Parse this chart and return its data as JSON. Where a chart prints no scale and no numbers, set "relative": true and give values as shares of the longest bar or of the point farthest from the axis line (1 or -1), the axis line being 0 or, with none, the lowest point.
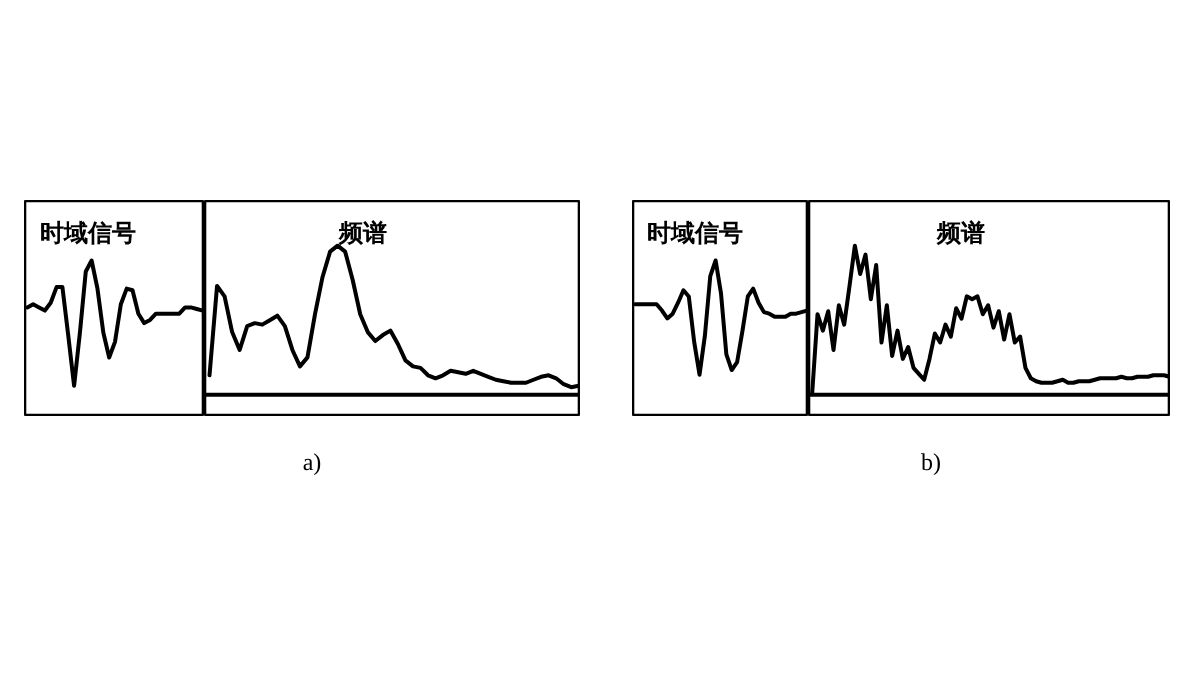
{
  "chart_data": [
    {
      "type": "line",
      "title": "时域信号",
      "relative": true,
      "color": "#000000",
      "categories": [
        null,
        null,
        null,
        null,
        null,
        null,
        null,
        null,
        null,
        null,
        null,
        null,
        null,
        null,
        null,
        null,
        null,
        null,
        null,
        null,
        null,
        null,
        null,
        null,
        null,
        null,
        null,
        null,
        null,
        null,
        null
      ],
      "values": [
        0.7,
        0.72,
        0.7,
        0.68,
        0.73,
        0.83,
        0.83,
        0.52,
        0.2,
        0.54,
        0.93,
        1,
        0.82,
        0.54,
        0.38,
        0.48,
        0.72,
        0.82,
        0.81,
        0.66,
        0.6,
        0.62,
        0.66,
        0.66,
        0.66,
        0.66,
        0.66,
        0.7,
        0.7,
        0.69,
        0.68
      ]
    },
    {
      "type": "line",
      "title": "频谱",
      "relative": true,
      "color": "#000000",
      "annotations": [
        "a)"
      ],
      "categories": [
        null,
        null,
        null,
        null,
        null,
        null,
        null,
        null,
        null,
        null,
        null,
        null,
        null,
        null,
        null,
        null,
        null,
        null,
        null,
        null,
        null,
        null,
        null,
        null,
        null,
        null,
        null,
        null,
        null,
        null,
        null,
        null,
        null,
        null,
        null,
        null,
        null,
        null,
        null,
        null,
        null,
        null,
        null,
        null,
        null,
        null,
        null,
        null,
        null,
        null
      ],
      "values": [
        0.13,
        0.73,
        0.66,
        0.42,
        0.3,
        0.46,
        0.48,
        0.47,
        0.5,
        0.53,
        0.46,
        0.3,
        0.19,
        0.25,
        0.54,
        0.79,
        0.96,
        1,
        0.96,
        0.77,
        0.54,
        0.42,
        0.36,
        0.4,
        0.43,
        0.34,
        0.23,
        0.19,
        0.18,
        0.13,
        0.11,
        0.13,
        0.16,
        0.15,
        0.14,
        0.16,
        0.14,
        0.12,
        0.1,
        0.09,
        0.08,
        0.08,
        0.08,
        0.1,
        0.12,
        0.13,
        0.11,
        0.07,
        0.05,
        0.06
      ]
    },
    {
      "type": "line",
      "title": "时域信号",
      "relative": true,
      "color": "#000000",
      "categories": [
        null,
        null,
        null,
        null,
        null,
        null,
        null,
        null,
        null,
        null,
        null,
        null,
        null,
        null,
        null,
        null,
        null,
        null,
        null,
        null,
        null,
        null,
        null,
        null,
        null,
        null,
        null,
        null,
        null,
        null,
        null,
        null,
        null
      ],
      "values": [
        0.72,
        0.72,
        0.72,
        0.72,
        0.72,
        0.68,
        0.63,
        0.66,
        0.73,
        0.81,
        0.77,
        0.48,
        0.27,
        0.52,
        0.9,
        1,
        0.79,
        0.4,
        0.3,
        0.35,
        0.55,
        0.77,
        0.82,
        0.73,
        0.67,
        0.66,
        0.64,
        0.64,
        0.64,
        0.66,
        0.66,
        0.67,
        0.68
      ]
    },
    {
      "type": "line",
      "title": "频谱",
      "relative": true,
      "color": "#000000",
      "annotations": [
        "b)"
      ],
      "categories": [
        null,
        null,
        null,
        null,
        null,
        null,
        null,
        null,
        null,
        null,
        null,
        null,
        null,
        null,
        null,
        null,
        null,
        null,
        null,
        null,
        null,
        null,
        null,
        null,
        null,
        null,
        null,
        null,
        null,
        null,
        null,
        null,
        null,
        null,
        null,
        null,
        null,
        null,
        null,
        null,
        null,
        null,
        null,
        null,
        null,
        null,
        null,
        null,
        null,
        null,
        null,
        null,
        null,
        null,
        null,
        null,
        null,
        null,
        null,
        null,
        null,
        null,
        null,
        null,
        null,
        null,
        null,
        null
      ],
      "values": [
        0.01,
        0.54,
        0.43,
        0.56,
        0.3,
        0.6,
        0.47,
        0.73,
        1,
        0.81,
        0.94,
        0.64,
        0.87,
        0.35,
        0.6,
        0.26,
        0.43,
        0.24,
        0.32,
        0.18,
        0.14,
        0.1,
        0.24,
        0.41,
        0.35,
        0.47,
        0.39,
        0.58,
        0.51,
        0.66,
        0.64,
        0.66,
        0.54,
        0.6,
        0.45,
        0.56,
        0.37,
        0.54,
        0.35,
        0.39,
        0.18,
        0.11,
        0.09,
        0.08,
        0.08,
        0.08,
        0.09,
        0.1,
        0.08,
        0.08,
        0.09,
        0.09,
        0.09,
        0.1,
        0.11,
        0.11,
        0.11,
        0.11,
        0.12,
        0.11,
        0.11,
        0.12,
        0.12,
        0.12,
        0.13,
        0.13,
        0.13,
        0.12
      ]
    }
  ]
}
